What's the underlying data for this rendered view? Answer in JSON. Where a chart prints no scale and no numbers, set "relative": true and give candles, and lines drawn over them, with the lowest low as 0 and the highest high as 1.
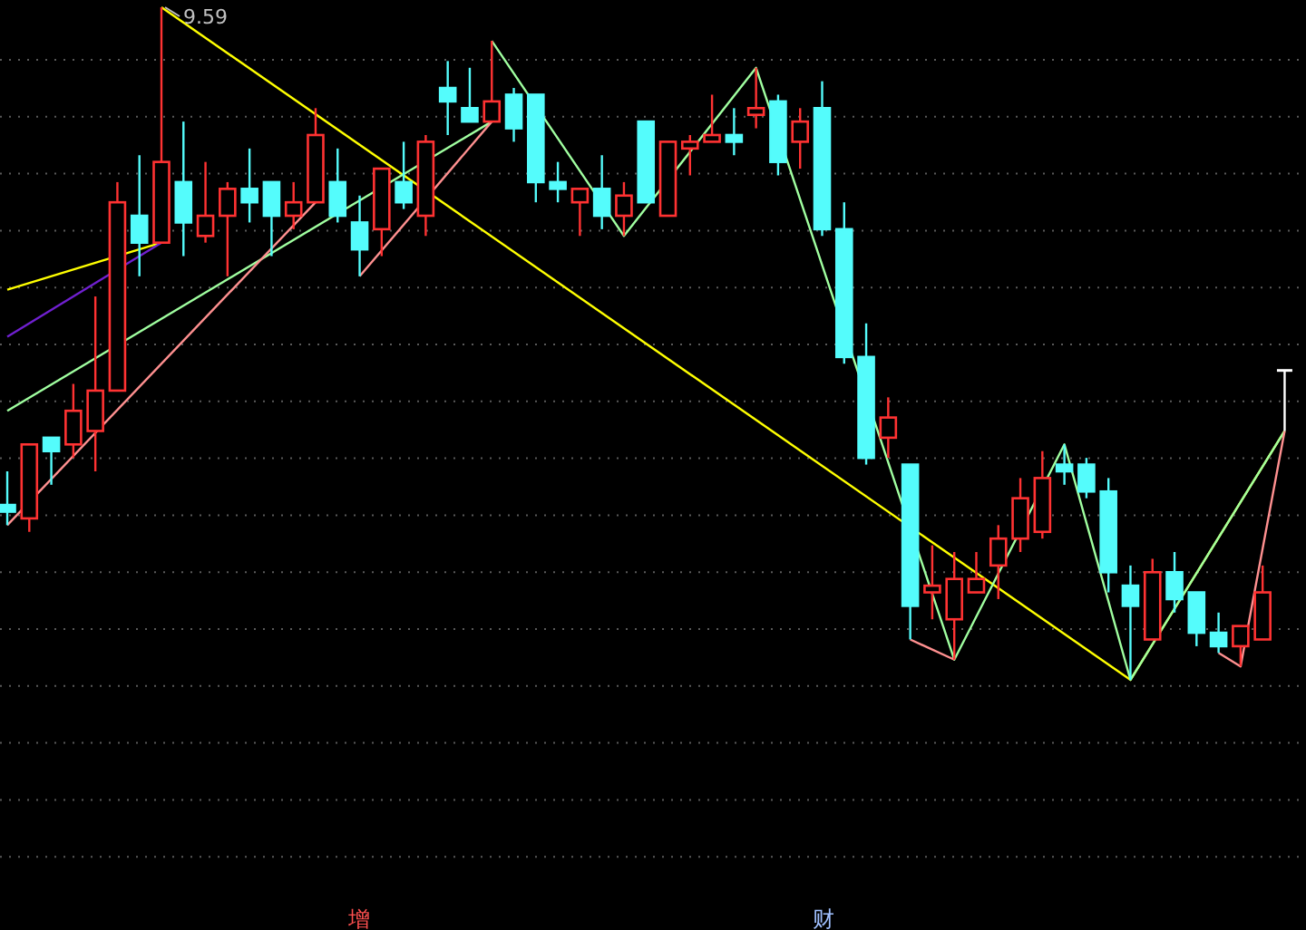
{
  "chart_data": {
    "type": "candlestick",
    "relative": true,
    "grid": true,
    "categories": [
      null,
      null,
      null,
      null,
      null,
      null,
      null,
      null,
      null,
      null,
      null,
      null,
      null,
      null,
      null,
      null,
      null,
      null,
      null,
      null,
      null,
      null,
      null,
      null,
      null,
      null,
      null,
      null,
      null,
      null,
      null,
      null,
      null,
      null,
      null,
      null,
      null,
      null,
      null,
      null,
      null,
      null,
      null,
      null,
      null,
      null,
      null,
      null,
      null,
      null,
      null,
      null,
      null,
      null,
      null,
      null,
      null,
      null,
      null
    ],
    "ohlc": [
      [
        0.26,
        0.31,
        0.23,
        0.25
      ],
      [
        0.24,
        0.35,
        0.22,
        0.35
      ],
      [
        0.36,
        0.36,
        0.29,
        0.34
      ],
      [
        0.35,
        0.44,
        0.33,
        0.4
      ],
      [
        0.37,
        0.57,
        0.31,
        0.43
      ],
      [
        0.43,
        0.74,
        0.43,
        0.71
      ],
      [
        0.69,
        0.78,
        0.6,
        0.65
      ],
      [
        0.65,
        1.0,
        0.65,
        0.77
      ],
      [
        0.74,
        0.83,
        0.63,
        0.68
      ],
      [
        0.66,
        0.77,
        0.65,
        0.69
      ],
      [
        0.69,
        0.74,
        0.6,
        0.73
      ],
      [
        0.73,
        0.79,
        0.68,
        0.71
      ],
      [
        0.74,
        0.74,
        0.63,
        0.69
      ],
      [
        0.69,
        0.74,
        0.67,
        0.71
      ],
      [
        0.71,
        0.85,
        0.71,
        0.81
      ],
      [
        0.74,
        0.79,
        0.68,
        0.69
      ],
      [
        0.68,
        0.72,
        0.6,
        0.64
      ],
      [
        0.67,
        0.76,
        0.63,
        0.76
      ],
      [
        0.74,
        0.8,
        0.7,
        0.71
      ],
      [
        0.69,
        0.81,
        0.66,
        0.8
      ],
      [
        0.88,
        0.92,
        0.81,
        0.86
      ],
      [
        0.85,
        0.91,
        0.83,
        0.83
      ],
      [
        0.83,
        0.95,
        0.83,
        0.86
      ],
      [
        0.87,
        0.88,
        0.8,
        0.82
      ],
      [
        0.87,
        0.87,
        0.71,
        0.74
      ],
      [
        0.74,
        0.77,
        0.71,
        0.73
      ],
      [
        0.71,
        0.73,
        0.66,
        0.73
      ],
      [
        0.73,
        0.78,
        0.67,
        0.69
      ],
      [
        0.69,
        0.74,
        0.66,
        0.72
      ],
      [
        0.83,
        0.83,
        0.71,
        0.71
      ],
      [
        0.69,
        0.8,
        0.69,
        0.8
      ],
      [
        0.79,
        0.81,
        0.75,
        0.8
      ],
      [
        0.8,
        0.87,
        0.8,
        0.81
      ],
      [
        0.81,
        0.85,
        0.78,
        0.8
      ],
      [
        0.84,
        0.91,
        0.82,
        0.85
      ],
      [
        0.86,
        0.87,
        0.75,
        0.77
      ],
      [
        0.8,
        0.85,
        0.76,
        0.83
      ],
      [
        0.85,
        0.89,
        0.66,
        0.67
      ],
      [
        0.67,
        0.71,
        0.47,
        0.48
      ],
      [
        0.48,
        0.53,
        0.32,
        0.33
      ],
      [
        0.36,
        0.42,
        0.33,
        0.39
      ],
      [
        0.32,
        0.32,
        0.06,
        0.11
      ],
      [
        0.13,
        0.2,
        0.09,
        0.14
      ],
      [
        0.09,
        0.19,
        0.03,
        0.15
      ],
      [
        0.13,
        0.19,
        0.13,
        0.15
      ],
      [
        0.17,
        0.23,
        0.12,
        0.21
      ],
      [
        0.21,
        0.3,
        0.19,
        0.27
      ],
      [
        0.22,
        0.34,
        0.21,
        0.3
      ],
      [
        0.32,
        0.35,
        0.29,
        0.31
      ],
      [
        0.32,
        0.33,
        0.27,
        0.28
      ],
      [
        0.28,
        0.3,
        0.13,
        0.16
      ],
      [
        0.14,
        0.17,
        0.0,
        0.11
      ],
      [
        0.06,
        0.18,
        0.06,
        0.16
      ],
      [
        0.16,
        0.19,
        0.1,
        0.12
      ],
      [
        0.13,
        0.13,
        0.05,
        0.07
      ],
      [
        0.07,
        0.1,
        0.04,
        0.05
      ],
      [
        0.05,
        0.08,
        0.02,
        0.08
      ],
      [
        0.06,
        0.17,
        0.06,
        0.13
      ],
      [
        0.46,
        0.46,
        0.37,
        0.46
      ]
    ],
    "colors": [
      "#54fcfc",
      "#ff3232",
      "#54fcfc",
      "#ff3232",
      "#ff3232",
      "#ff3232",
      "#54fcfc",
      "#ff3232",
      "#54fcfc",
      "#ff3232",
      "#ff3232",
      "#54fcfc",
      "#54fcfc",
      "#ff3232",
      "#ff3232",
      "#54fcfc",
      "#54fcfc",
      "#ff3232",
      "#54fcfc",
      "#ff3232",
      "#54fcfc",
      "#54fcfc",
      "#ff3232",
      "#54fcfc",
      "#54fcfc",
      "#54fcfc",
      "#ff3232",
      "#54fcfc",
      "#ff3232",
      "#54fcfc",
      "#ff3232",
      "#ff3232",
      "#ff3232",
      "#54fcfc",
      "#ff3232",
      "#54fcfc",
      "#ff3232",
      "#54fcfc",
      "#54fcfc",
      "#54fcfc",
      "#ff3232",
      "#54fcfc",
      "#ff3232",
      "#ff3232",
      "#ff3232",
      "#ff3232",
      "#ff3232",
      "#ff3232",
      "#54fcfc",
      "#54fcfc",
      "#54fcfc",
      "#54fcfc",
      "#ff3232",
      "#54fcfc",
      "#54fcfc",
      "#54fcfc",
      "#ff3232",
      "#ff3232",
      "#ffffff"
    ],
    "series": [
      {
        "type": "line",
        "color": "#ffff00",
        "values": [
          null,
          null,
          null,
          null,
          null,
          null,
          null,
          1.0,
          null,
          null,
          null,
          null,
          null,
          null,
          null,
          null,
          null,
          null,
          null,
          null,
          null,
          null,
          null,
          null,
          null,
          null,
          null,
          null,
          null,
          null,
          null,
          null,
          null,
          null,
          null,
          null,
          null,
          null,
          null,
          null,
          null,
          null,
          null,
          null,
          null,
          null,
          null,
          null,
          null,
          null,
          null,
          0.0,
          null,
          null,
          null,
          null,
          null,
          null,
          0.37
        ]
      },
      {
        "type": "line",
        "color": "#ffff00",
        "values": [
          0.58,
          null,
          null,
          null,
          null,
          null,
          null,
          0.65,
          null,
          null,
          null,
          null,
          null,
          null,
          null,
          null,
          null,
          null,
          null,
          null,
          null,
          null,
          null,
          null,
          null,
          null,
          null,
          null,
          null,
          null,
          null,
          null,
          null,
          null,
          null,
          null,
          null,
          null,
          null,
          null,
          null,
          null,
          null,
          null,
          null,
          null,
          null,
          null,
          null,
          null,
          null,
          null,
          null,
          null,
          null,
          null,
          null,
          null,
          null
        ]
      },
      {
        "type": "line",
        "color": "#7020d0",
        "values": [
          0.51,
          null,
          null,
          null,
          null,
          null,
          null,
          0.65,
          null,
          null,
          null,
          null,
          null,
          null,
          null,
          null,
          null,
          null,
          null,
          null,
          null,
          null,
          null,
          null,
          null,
          null,
          null,
          null,
          null,
          null,
          null,
          null,
          null,
          null,
          null,
          null,
          null,
          null,
          null,
          null,
          null,
          null,
          null,
          null,
          null,
          null,
          null,
          null,
          null,
          null,
          null,
          null,
          null,
          null,
          null,
          null,
          null,
          null,
          null
        ]
      },
      {
        "type": "line",
        "color": "#a0ffa0",
        "values": [
          0.4,
          null,
          null,
          null,
          null,
          null,
          null,
          null,
          null,
          null,
          null,
          null,
          null,
          null,
          null,
          null,
          null,
          null,
          null,
          null,
          null,
          null,
          0.83,
          null,
          null,
          null,
          null,
          null,
          null,
          null,
          null,
          null,
          null,
          null,
          null,
          null,
          null,
          null,
          null,
          null,
          null,
          null,
          null,
          null,
          null,
          null,
          null,
          null,
          null,
          null,
          null,
          null,
          null,
          null,
          null,
          null,
          null,
          null,
          null
        ]
      },
      {
        "type": "line",
        "color": "#a0ffa0",
        "values": [
          null,
          null,
          null,
          null,
          null,
          null,
          null,
          null,
          null,
          null,
          null,
          null,
          null,
          null,
          null,
          null,
          null,
          null,
          null,
          null,
          null,
          null,
          0.95,
          null,
          null,
          null,
          null,
          null,
          0.66,
          null,
          null,
          null,
          null,
          null,
          0.91,
          null,
          null,
          null,
          null,
          null,
          null,
          null,
          null,
          0.03,
          null,
          null,
          null,
          null,
          0.35,
          null,
          null,
          0.0,
          null,
          null,
          null,
          null,
          null,
          null,
          0.37
        ]
      },
      {
        "type": "line",
        "color": "#ff9090",
        "values": [
          0.23,
          null,
          null,
          null,
          null,
          null,
          null,
          null,
          null,
          null,
          null,
          null,
          null,
          null,
          0.71,
          null,
          null,
          null,
          null,
          null,
          null,
          null,
          null,
          null,
          null,
          null,
          null,
          null,
          null,
          null,
          null,
          null,
          null,
          null,
          null,
          null,
          null,
          null,
          null,
          null,
          null,
          null,
          null,
          null,
          null,
          null,
          null,
          null,
          null,
          null,
          null,
          null,
          null,
          null,
          null,
          null,
          null,
          null,
          null
        ]
      },
      {
        "type": "line",
        "color": "#ff9090",
        "values": [
          null,
          null,
          null,
          null,
          null,
          null,
          null,
          null,
          null,
          null,
          null,
          null,
          null,
          null,
          null,
          null,
          0.6,
          null,
          null,
          null,
          null,
          null,
          0.83,
          null,
          null,
          null,
          null,
          null,
          null,
          null,
          null,
          null,
          null,
          null,
          null,
          null,
          null,
          null,
          null,
          null,
          null,
          null,
          null,
          null,
          null,
          null,
          null,
          null,
          null,
          null,
          null,
          null,
          null,
          null,
          null,
          null,
          null,
          null,
          null
        ]
      },
      {
        "type": "line",
        "color": "#ff9090",
        "values": [
          null,
          null,
          null,
          null,
          null,
          null,
          null,
          null,
          null,
          null,
          null,
          null,
          null,
          null,
          null,
          null,
          null,
          null,
          null,
          null,
          null,
          null,
          null,
          null,
          null,
          null,
          null,
          null,
          null,
          null,
          null,
          null,
          null,
          null,
          null,
          null,
          null,
          null,
          null,
          null,
          null,
          0.06,
          null,
          0.03,
          null,
          null,
          null,
          null,
          null,
          null,
          null,
          null,
          null,
          null,
          null,
          null,
          null,
          null,
          null
        ]
      },
      {
        "type": "line",
        "color": "#ff9090",
        "values": [
          null,
          null,
          null,
          null,
          null,
          null,
          null,
          null,
          null,
          null,
          null,
          null,
          null,
          null,
          null,
          null,
          null,
          null,
          null,
          null,
          null,
          null,
          null,
          null,
          null,
          null,
          null,
          null,
          null,
          null,
          null,
          null,
          null,
          null,
          null,
          null,
          null,
          null,
          null,
          null,
          null,
          null,
          null,
          null,
          null,
          null,
          null,
          null,
          null,
          null,
          null,
          null,
          null,
          null,
          null,
          0.04,
          0.02,
          null,
          0.37
        ]
      }
    ],
    "annotations": [
      "9.59",
      "增",
      "财"
    ]
  }
}
